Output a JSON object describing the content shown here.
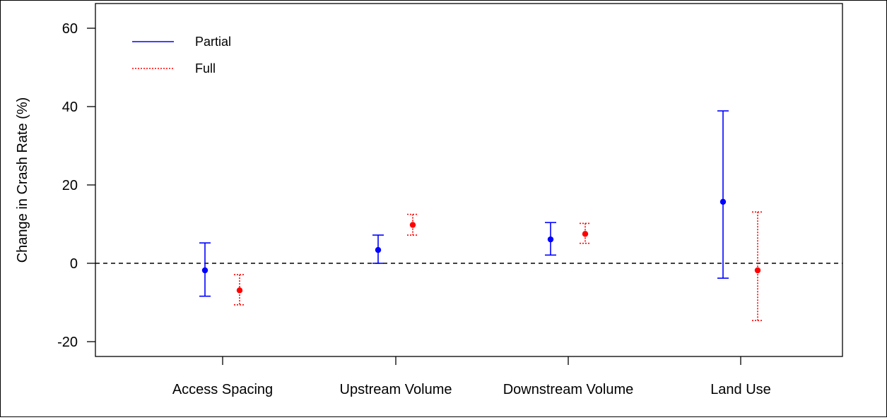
{
  "chart_data": {
    "type": "errorbar",
    "categories": [
      "Access Spacing",
      "Upstream Volume",
      "Downstream Volume",
      "Land Use"
    ],
    "ylabel": "Change in Crash Rate (%)",
    "xlabel": "",
    "title": "",
    "ylim": [
      -23,
      63
    ],
    "yticks": [
      -20,
      0,
      20,
      40,
      60
    ],
    "reference_line": 0,
    "grid": false,
    "legend": {
      "placement": "top-left",
      "entries": [
        {
          "name": "Partial",
          "color": "#0000ff",
          "style": "solid"
        },
        {
          "name": "Full",
          "color": "#ff0000",
          "style": "dotted"
        }
      ]
    },
    "series": [
      {
        "name": "Partial",
        "color": "#0000ff",
        "style": "solid",
        "points": [
          {
            "category": "Access Spacing",
            "estimate": -1.8,
            "lower": -8.4,
            "upper": 5.2
          },
          {
            "category": "Upstream Volume",
            "estimate": 3.4,
            "lower": 0.0,
            "upper": 7.2
          },
          {
            "category": "Downstream Volume",
            "estimate": 6.1,
            "lower": 2.1,
            "upper": 10.4
          },
          {
            "category": "Land Use",
            "estimate": 15.7,
            "lower": -3.8,
            "upper": 38.9
          }
        ]
      },
      {
        "name": "Full",
        "color": "#ff0000",
        "style": "dotted",
        "points": [
          {
            "category": "Access Spacing",
            "estimate": -6.9,
            "lower": -10.6,
            "upper": -2.9
          },
          {
            "category": "Upstream Volume",
            "estimate": 9.8,
            "lower": 7.2,
            "upper": 12.5
          },
          {
            "category": "Downstream Volume",
            "estimate": 7.5,
            "lower": 5.1,
            "upper": 10.2
          },
          {
            "category": "Land Use",
            "estimate": -1.8,
            "lower": -14.6,
            "upper": 13.1
          }
        ]
      }
    ]
  }
}
